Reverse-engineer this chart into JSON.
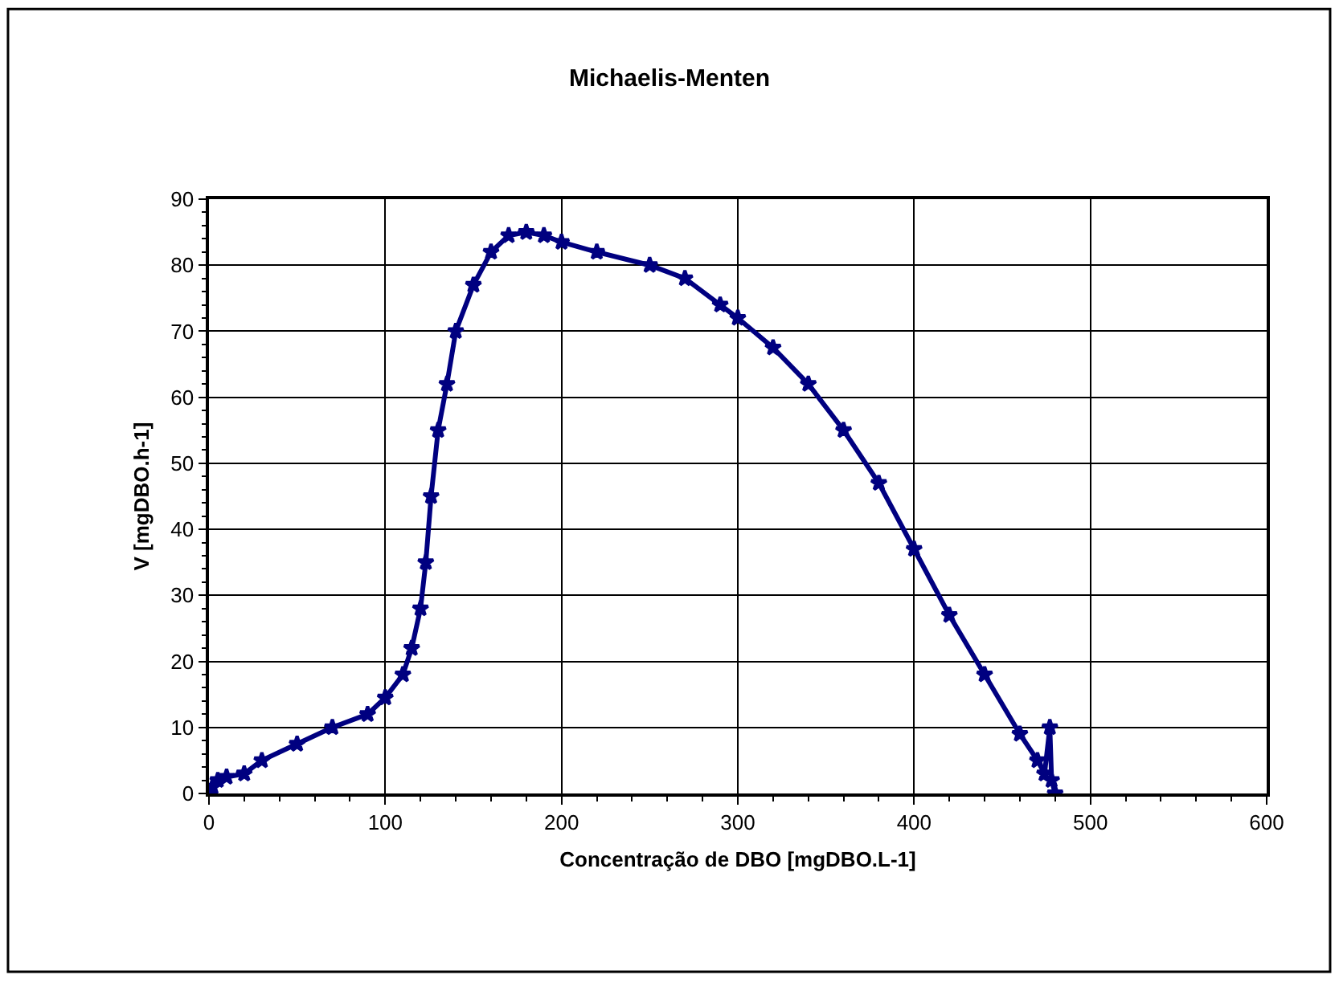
{
  "chart_data": {
    "type": "line",
    "title": "Michaelis-Menten",
    "xlabel": "Concentração de DBO [mgDBO.L-1]",
    "ylabel": "V [mgDBO.h-1]",
    "xlim": [
      0,
      600
    ],
    "xticks": [
      0,
      100,
      200,
      300,
      400,
      500,
      600
    ],
    "ylim": [
      0,
      90
    ],
    "yticks": [
      0,
      10,
      20,
      30,
      40,
      50,
      60,
      70,
      80,
      90
    ],
    "grid": true,
    "marker": "star",
    "line_style": "solid",
    "series": [
      {
        "color": "#000080",
        "x": [
          0,
          2,
          5,
          10,
          20,
          30,
          50,
          70,
          90,
          100,
          110,
          115,
          120,
          123,
          126,
          130,
          135,
          140,
          150,
          160,
          170,
          180,
          190,
          200,
          220,
          250,
          270,
          290,
          300,
          320,
          340,
          360,
          380,
          400,
          420,
          440,
          460,
          470,
          474,
          477,
          478,
          480
        ],
        "values": [
          0,
          1,
          2,
          2.5,
          3,
          5,
          7.5,
          10,
          12,
          14.5,
          18,
          22,
          28,
          35,
          45,
          55,
          62,
          70,
          77,
          82,
          84.5,
          85,
          84.5,
          83.5,
          82,
          80,
          78,
          74,
          72,
          67.5,
          62,
          55,
          47,
          37,
          27,
          18,
          9,
          5,
          3,
          10,
          2,
          0
        ]
      }
    ]
  }
}
